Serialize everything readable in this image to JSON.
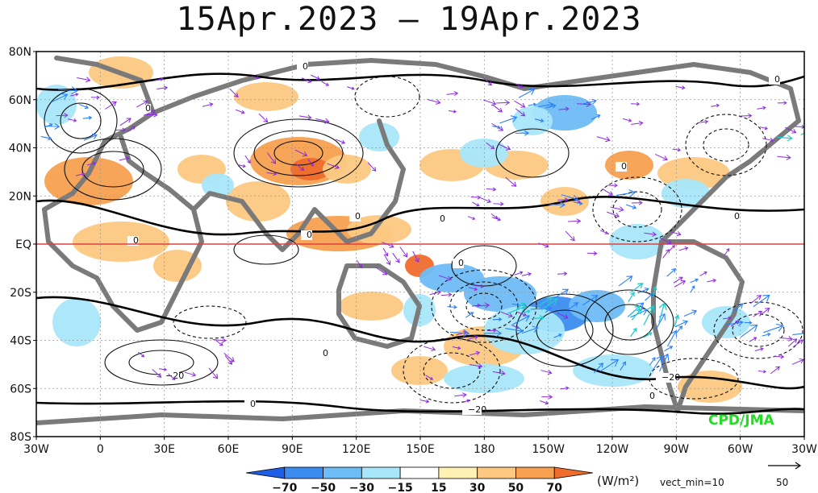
{
  "title": "15Apr.2023 – 19Apr.2023",
  "credit": "CPD/JMA",
  "lat_labels": [
    "80N",
    "60N",
    "40N",
    "20N",
    "EQ",
    "20S",
    "40S",
    "60S",
    "80S"
  ],
  "lon_labels": [
    "30W",
    "0",
    "30E",
    "60E",
    "90E",
    "120E",
    "150E",
    "180",
    "150W",
    "120W",
    "90W",
    "60W",
    "30W"
  ],
  "colorbar": {
    "labels": [
      "−70",
      "−50",
      "−30",
      "−15",
      "15",
      "30",
      "50",
      "70"
    ],
    "colors": [
      "#1e5fe6",
      "#3c8cf0",
      "#6ebcf5",
      "#a8e6fa",
      "#ffffff",
      "#fff0b4",
      "#fcc882",
      "#f7a050",
      "#f06c2c"
    ],
    "units": "(W/m²)"
  },
  "vector": {
    "min_label": "vect_min=10",
    "ref_value": "50"
  },
  "contour_labels": [
    "0",
    "0",
    "0",
    "0",
    "0",
    "0",
    "0",
    "0",
    "0",
    "0",
    "0",
    "0",
    "0",
    "−20",
    "−20",
    "−20"
  ],
  "colors": {
    "equator": "#e04040",
    "land": "#7a7a7a",
    "arrow_weak": "#8a2be2",
    "arrow_mid": "#2a7fff",
    "arrow_strong": "#22cccc",
    "credit": "#22dd22"
  }
}
